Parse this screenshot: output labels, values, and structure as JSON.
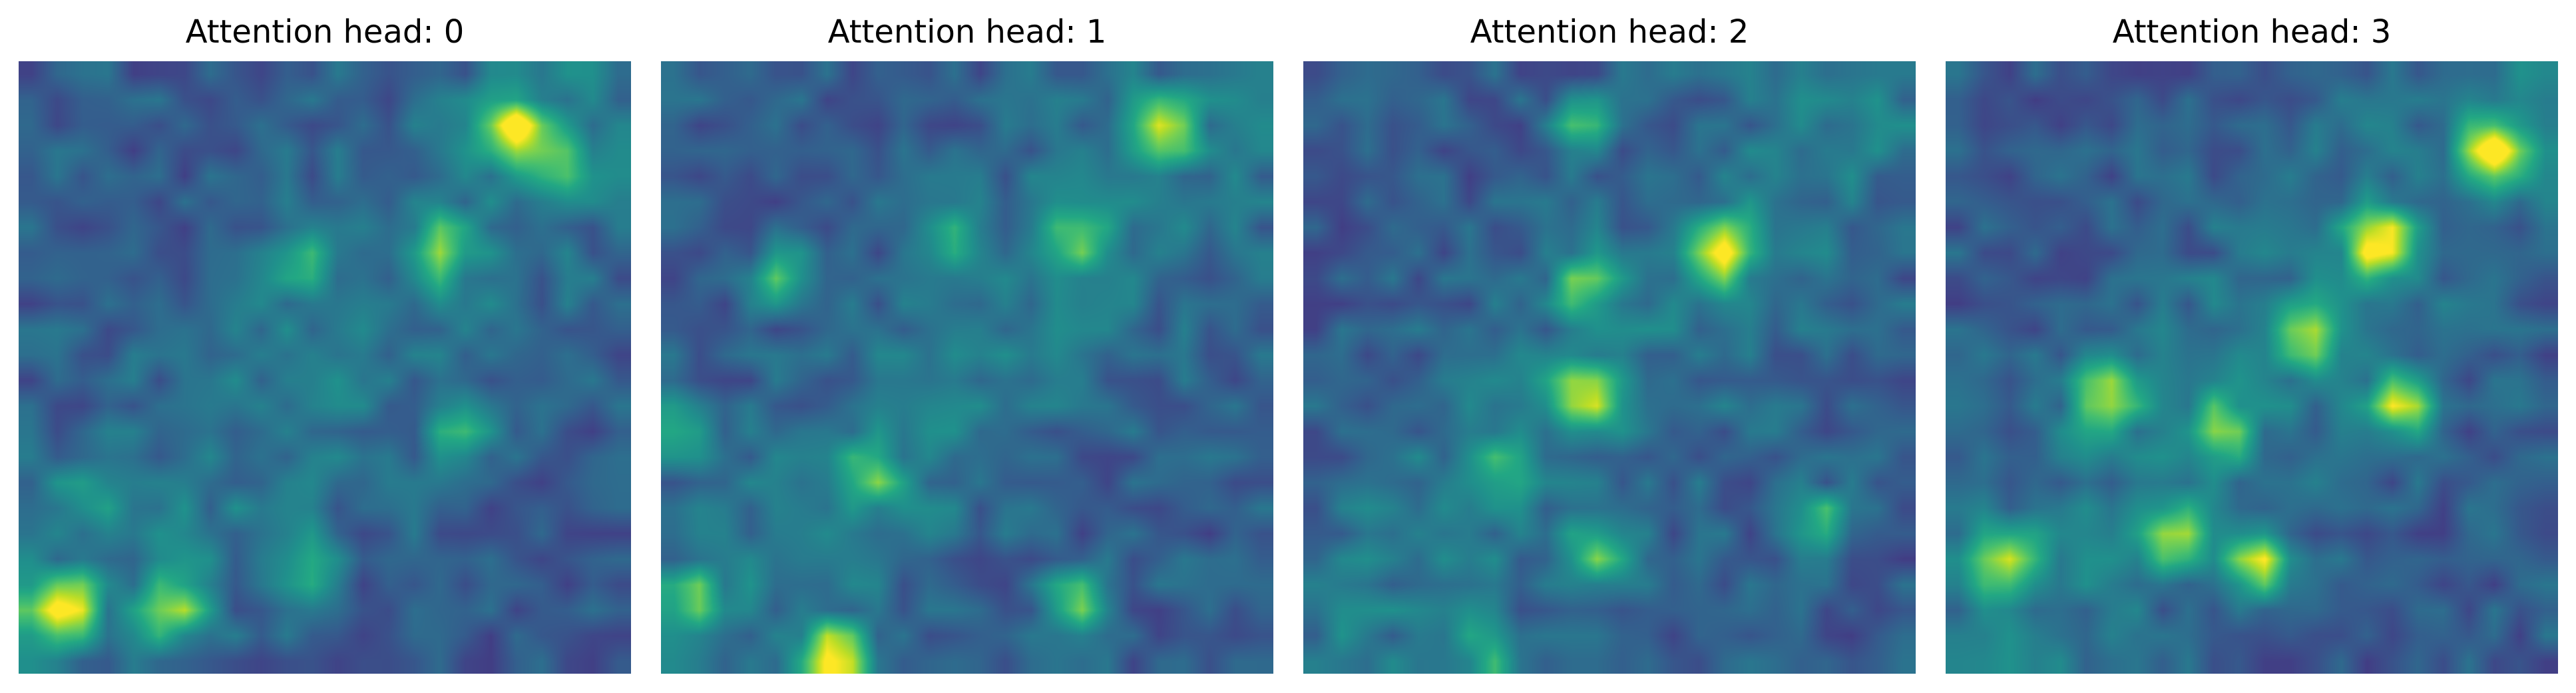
{
  "colors": {
    "colormap": "viridis",
    "low": "#440154",
    "mid": "#21918c",
    "high": "#fde725"
  },
  "chart_data": [
    {
      "type": "heatmap",
      "title": "Attention head: 0",
      "grid": false,
      "axes": "off",
      "colormap": "viridis",
      "hotspots": [
        {
          "x": 0.81,
          "y": 0.11,
          "value": 0.95
        },
        {
          "x": 0.07,
          "y": 0.89,
          "value": 1.0
        },
        {
          "x": 0.25,
          "y": 0.89,
          "value": 0.7
        },
        {
          "x": 0.69,
          "y": 0.31,
          "value": 0.55
        },
        {
          "x": 0.89,
          "y": 0.18,
          "value": 0.5
        },
        {
          "x": 0.47,
          "y": 0.82,
          "value": 0.45
        },
        {
          "x": 0.1,
          "y": 0.7,
          "value": 0.35
        },
        {
          "x": 0.47,
          "y": 0.33,
          "value": 0.35
        },
        {
          "x": 0.72,
          "y": 0.6,
          "value": 0.4
        }
      ]
    },
    {
      "type": "heatmap",
      "title": "Attention head: 1",
      "grid": false,
      "axes": "off",
      "colormap": "viridis",
      "hotspots": [
        {
          "x": 0.28,
          "y": 0.97,
          "value": 1.0
        },
        {
          "x": 0.82,
          "y": 0.11,
          "value": 0.7
        },
        {
          "x": 0.04,
          "y": 0.6,
          "value": 0.5
        },
        {
          "x": 0.34,
          "y": 0.68,
          "value": 0.5
        },
        {
          "x": 0.68,
          "y": 0.3,
          "value": 0.55
        },
        {
          "x": 0.68,
          "y": 0.88,
          "value": 0.55
        },
        {
          "x": 0.2,
          "y": 0.35,
          "value": 0.45
        },
        {
          "x": 0.47,
          "y": 0.3,
          "value": 0.4
        },
        {
          "x": 0.05,
          "y": 0.88,
          "value": 0.5
        }
      ]
    },
    {
      "type": "heatmap",
      "title": "Attention head: 2",
      "grid": false,
      "axes": "off",
      "colormap": "viridis",
      "hotspots": [
        {
          "x": 0.68,
          "y": 0.31,
          "value": 1.0
        },
        {
          "x": 0.46,
          "y": 0.54,
          "value": 0.8
        },
        {
          "x": 0.46,
          "y": 0.36,
          "value": 0.55
        },
        {
          "x": 0.48,
          "y": 0.8,
          "value": 0.55
        },
        {
          "x": 0.84,
          "y": 0.75,
          "value": 0.5
        },
        {
          "x": 0.45,
          "y": 0.1,
          "value": 0.45
        },
        {
          "x": 0.33,
          "y": 0.66,
          "value": 0.45
        },
        {
          "x": 0.3,
          "y": 0.96,
          "value": 0.4
        }
      ]
    },
    {
      "type": "heatmap",
      "title": "Attention head: 3",
      "grid": false,
      "axes": "off",
      "colormap": "viridis",
      "hotspots": [
        {
          "x": 0.71,
          "y": 0.3,
          "value": 1.0
        },
        {
          "x": 0.89,
          "y": 0.15,
          "value": 0.95
        },
        {
          "x": 0.74,
          "y": 0.56,
          "value": 0.85
        },
        {
          "x": 0.51,
          "y": 0.82,
          "value": 0.9
        },
        {
          "x": 0.26,
          "y": 0.55,
          "value": 0.75
        },
        {
          "x": 0.09,
          "y": 0.81,
          "value": 0.8
        },
        {
          "x": 0.38,
          "y": 0.78,
          "value": 0.7
        },
        {
          "x": 0.6,
          "y": 0.45,
          "value": 0.6
        },
        {
          "x": 0.45,
          "y": 0.6,
          "value": 0.55
        }
      ]
    }
  ]
}
